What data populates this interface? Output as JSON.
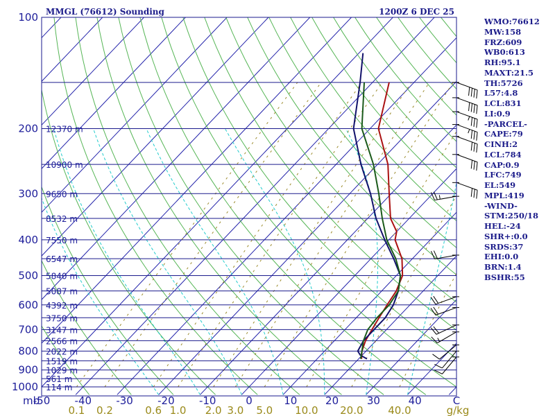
{
  "header": {
    "title": "MMGL (76612) Sounding",
    "time": "1200Z  6 DEC 25"
  },
  "sidebar": {
    "items": [
      "WMO:76612",
      "MW:158",
      "FRZ:609",
      "WB0:613",
      "RH:95.1",
      "MAXT:21.5",
      "TH:5726",
      "L57:4.8",
      "LCL:831",
      "LI:0.9",
      "-PARCEL-",
      "CAPE:79",
      "CINH:2",
      "LCL:784",
      "CAP:0.9",
      "LFC:749",
      "EL:549",
      "MPL:419",
      "-WIND-",
      "STM:250/18",
      "HEL:-24",
      "SHR+:0.0",
      "SRDS:37",
      "EHI:0.0",
      "BRN:1.4",
      "BSHR:55"
    ]
  },
  "colors": {
    "isobar": "#1a1a8c",
    "isotherm": "#2222aa",
    "dry_adiabat": "#55b555",
    "moist_adiabat": "#22cccc",
    "mixing_ratio": "#9a8a2a",
    "temperature": "#aa1111",
    "dewpoint": "#11116a",
    "parcel": "#1a5a1a",
    "wind_barb": "#000000"
  },
  "chart_data": {
    "type": "skew-t log-p",
    "title": "MMGL (76612) Sounding",
    "time": "1200Z  6 DEC 25",
    "xlabel_unit": "mb",
    "mixing_unit": "g/kg",
    "pressure_range": [
      1000,
      100
    ],
    "temperature_range": [
      -50,
      50
    ],
    "pressure_labels": [
      100,
      200,
      300,
      400,
      500,
      600,
      700,
      800,
      900,
      1000
    ],
    "isobars": [
      100,
      150,
      200,
      250,
      300,
      350,
      400,
      450,
      500,
      550,
      600,
      650,
      700,
      750,
      800,
      850,
      900,
      950,
      1000
    ],
    "temperature_labels": [
      "-50",
      "-40",
      "-30",
      "-20",
      "-10",
      "0",
      "10",
      "20",
      "30",
      "40",
      "C"
    ],
    "mixing_ratio_labels": [
      "0.1",
      "0.2",
      "0.6",
      "1.0",
      "2.0",
      "3.0",
      "5.0",
      "10.0",
      "20.0",
      "40.0"
    ],
    "height_labels": [
      {
        "p": 200,
        "label": "12370 m"
      },
      {
        "p": 250,
        "label": "10900 m"
      },
      {
        "p": 300,
        "label": "9650 m"
      },
      {
        "p": 350,
        "label": "8532 m"
      },
      {
        "p": 400,
        "label": "7550 m"
      },
      {
        "p": 450,
        "label": "6547 m"
      },
      {
        "p": 500,
        "label": "5840 m"
      },
      {
        "p": 550,
        "label": "5087 m"
      },
      {
        "p": 600,
        "label": "4392 m"
      },
      {
        "p": 650,
        "label": "3750 m"
      },
      {
        "p": 700,
        "label": "3147 m"
      },
      {
        "p": 750,
        "label": "2566 m"
      },
      {
        "p": 800,
        "label": "2022 m"
      },
      {
        "p": 850,
        "label": "1519 m"
      },
      {
        "p": 900,
        "label": "1029 m"
      },
      {
        "p": 950,
        "label": "561 m"
      },
      {
        "p": 1000,
        "label": "114 m"
      }
    ],
    "series": [
      {
        "name": "temperature",
        "points": [
          [
            840,
            20.7
          ],
          [
            800,
            19.0
          ],
          [
            750,
            17.5
          ],
          [
            700,
            16.5
          ],
          [
            650,
            15.5
          ],
          [
            600,
            14.5
          ],
          [
            550,
            13.5
          ],
          [
            500,
            11.5
          ],
          [
            450,
            7.5
          ],
          [
            400,
            1.5
          ],
          [
            380,
            0.0
          ],
          [
            350,
            -4.5
          ],
          [
            300,
            -10.5
          ],
          [
            250,
            -17.5
          ],
          [
            200,
            -28.0
          ],
          [
            150,
            -36.0
          ]
        ]
      },
      {
        "name": "dewpoint",
        "points": [
          [
            840,
            22.0
          ],
          [
            820,
            19.5
          ],
          [
            800,
            18.0
          ],
          [
            750,
            17.0
          ],
          [
            700,
            17.0
          ],
          [
            650,
            17.0
          ],
          [
            600,
            16.0
          ],
          [
            550,
            14.0
          ],
          [
            500,
            11.0
          ],
          [
            450,
            5.5
          ],
          [
            400,
            -1.0
          ],
          [
            350,
            -8.0
          ],
          [
            300,
            -15.0
          ],
          [
            250,
            -24.0
          ],
          [
            200,
            -34.0
          ],
          [
            150,
            -43.0
          ],
          [
            125,
            -49.0
          ]
        ]
      },
      {
        "name": "parcel",
        "points": [
          [
            840,
            20.5
          ],
          [
            800,
            19.0
          ],
          [
            750,
            17.0
          ],
          [
            700,
            15.5
          ],
          [
            650,
            15.0
          ],
          [
            600,
            15.0
          ],
          [
            550,
            14.0
          ],
          [
            500,
            11.0
          ],
          [
            450,
            6.0
          ],
          [
            400,
            -0.5
          ],
          [
            350,
            -6.5
          ],
          [
            300,
            -13.0
          ],
          [
            250,
            -21.0
          ],
          [
            200,
            -32.0
          ],
          [
            150,
            -42.0
          ]
        ]
      }
    ],
    "wind_barbs": [
      {
        "p": 150,
        "dir": 110,
        "kt": 40
      },
      {
        "p": 165,
        "dir": 110,
        "kt": 40
      },
      {
        "p": 180,
        "dir": 110,
        "kt": 35
      },
      {
        "p": 195,
        "dir": 110,
        "kt": 35
      },
      {
        "p": 210,
        "dir": 110,
        "kt": 30
      },
      {
        "p": 235,
        "dir": 110,
        "kt": 30
      },
      {
        "p": 280,
        "dir": 110,
        "kt": 30
      },
      {
        "p": 305,
        "dir": 260,
        "kt": 25
      },
      {
        "p": 440,
        "dir": 260,
        "kt": 20
      },
      {
        "p": 570,
        "dir": 250,
        "kt": 20
      },
      {
        "p": 610,
        "dir": 250,
        "kt": 20
      },
      {
        "p": 680,
        "dir": 245,
        "kt": 20
      },
      {
        "p": 710,
        "dir": 240,
        "kt": 15
      },
      {
        "p": 770,
        "dir": 230,
        "kt": 10
      },
      {
        "p": 800,
        "dir": 220,
        "kt": 10
      },
      {
        "p": 830,
        "dir": 220,
        "kt": 10
      }
    ]
  }
}
